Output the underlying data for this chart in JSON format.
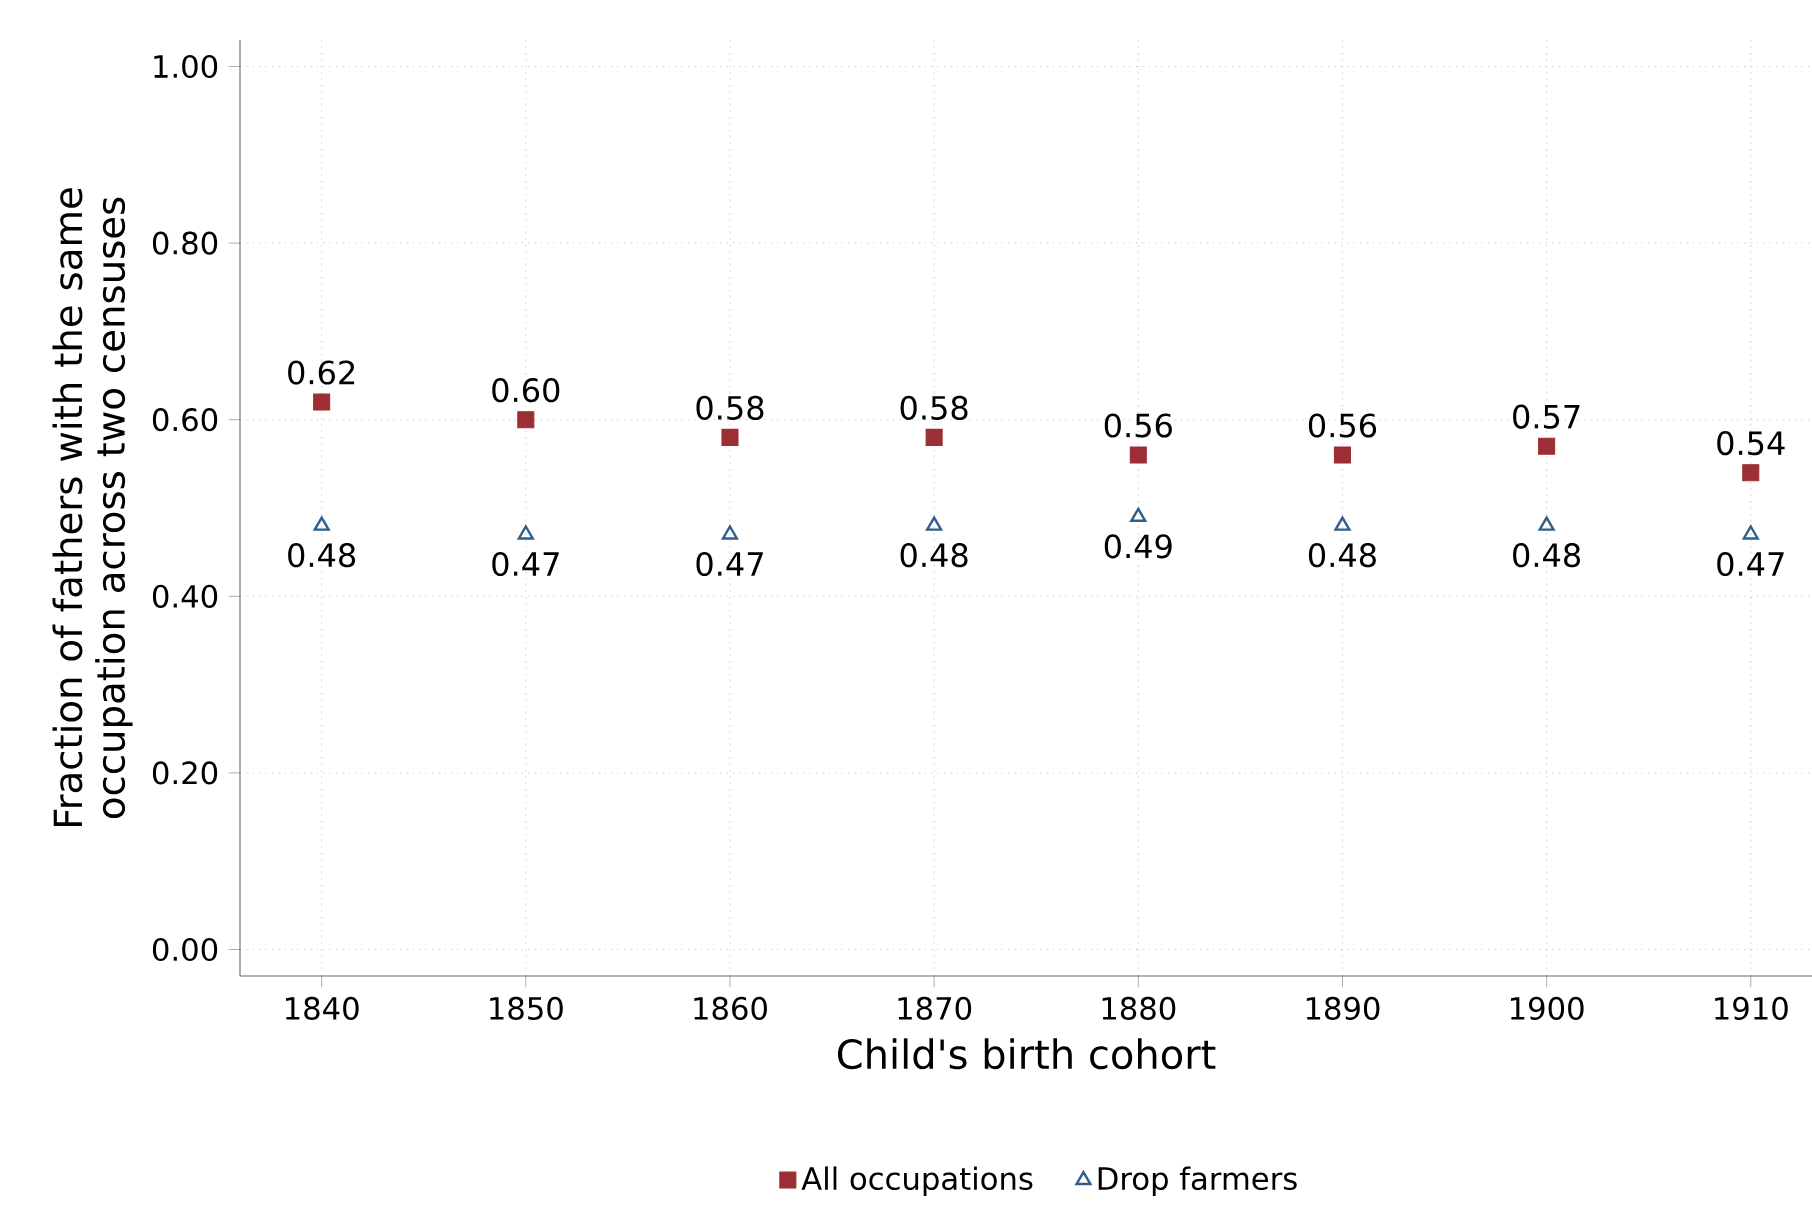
{
  "chart_data": {
    "type": "scatter",
    "xlabel": "Child's birth cohort",
    "ylabel": "Fraction of fathers with the same occupation across two censuses",
    "x": [
      1840,
      1850,
      1860,
      1870,
      1880,
      1890,
      1900,
      1910
    ],
    "series": [
      {
        "name": "All occupations",
        "color": "#9b2f35",
        "marker": "square",
        "values": [
          0.62,
          0.6,
          0.58,
          0.58,
          0.56,
          0.56,
          0.57,
          0.54
        ],
        "value_labels": [
          "0.62",
          "0.60",
          "0.58",
          "0.58",
          "0.56",
          "0.56",
          "0.57",
          "0.54"
        ]
      },
      {
        "name": "Drop farmers",
        "color": "#2f5f8a",
        "marker": "triangle",
        "values": [
          0.48,
          0.47,
          0.47,
          0.48,
          0.49,
          0.48,
          0.48,
          0.47
        ],
        "value_labels": [
          "0.48",
          "0.47",
          "0.47",
          "0.48",
          "0.49",
          "0.48",
          "0.48",
          "0.47"
        ]
      }
    ],
    "xlim": [
      1836,
      1913
    ],
    "ylim": [
      -0.03,
      1.03
    ],
    "xticks": [
      1840,
      1850,
      1860,
      1870,
      1880,
      1890,
      1900,
      1910
    ],
    "yticks": [
      {
        "value": 0,
        "label": "0.00"
      },
      {
        "value": 0.2,
        "label": "0.20"
      },
      {
        "value": 0.4,
        "label": "0.40"
      },
      {
        "value": 0.6,
        "label": "0.60"
      },
      {
        "value": 0.8,
        "label": "0.80"
      },
      {
        "value": 1,
        "label": "1.00"
      }
    ],
    "grid": true,
    "legend": "bottom"
  }
}
